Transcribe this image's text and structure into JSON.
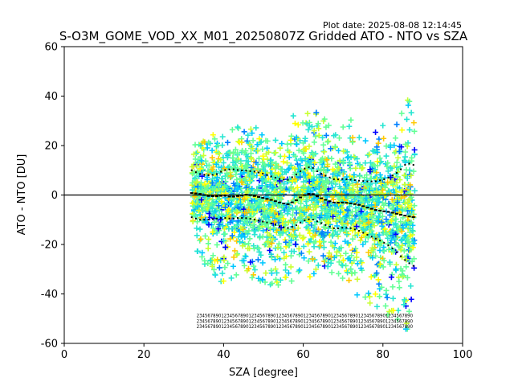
{
  "header": {
    "plot_date": "Plot date: 2025-08-08 12:14:45"
  },
  "chart_data": {
    "type": "scatter",
    "title": "S-O3M_GOME_VOD_XX_M01_20250807Z Gridded ATO - NTO vs SZA",
    "xlabel": "SZA [degree]",
    "ylabel": "ATO - NTO [DU]",
    "xlim": [
      0,
      100
    ],
    "ylim": [
      -60,
      60
    ],
    "xticks": [
      0,
      20,
      40,
      60,
      80,
      100
    ],
    "yticks": [
      -60,
      -40,
      -20,
      0,
      20,
      40,
      60
    ],
    "marker": "plus",
    "grid": false,
    "legend": "none",
    "zero_line": 0,
    "colors": {
      "point_palette": [
        "#0000ff",
        "#0080ff",
        "#00c8ff",
        "#28e6d2",
        "#64ff96",
        "#c8ff32",
        "#ffff00",
        "#ffc800"
      ],
      "mean_line": "#000000",
      "std_lines": "#000000"
    },
    "scatter_envelope": {
      "sza_range": [
        32,
        88
      ],
      "upper": [
        [
          32,
          22
        ],
        [
          36,
          24
        ],
        [
          40,
          25
        ],
        [
          44,
          30
        ],
        [
          48,
          28
        ],
        [
          52,
          24
        ],
        [
          56,
          27
        ],
        [
          60,
          44
        ],
        [
          62,
          36
        ],
        [
          66,
          30
        ],
        [
          70,
          31
        ],
        [
          74,
          30
        ],
        [
          78,
          28
        ],
        [
          82,
          30
        ],
        [
          86,
          42
        ],
        [
          88,
          30
        ]
      ],
      "lower": [
        [
          32,
          -22
        ],
        [
          36,
          -30
        ],
        [
          40,
          -36
        ],
        [
          44,
          -32
        ],
        [
          48,
          -34
        ],
        [
          52,
          -38
        ],
        [
          56,
          -36
        ],
        [
          60,
          -32
        ],
        [
          64,
          -36
        ],
        [
          68,
          -38
        ],
        [
          72,
          -40
        ],
        [
          76,
          -44
        ],
        [
          80,
          -48
        ],
        [
          84,
          -52
        ],
        [
          86,
          -56
        ],
        [
          88,
          -40
        ]
      ]
    },
    "mean": [
      [
        32,
        0.8
      ],
      [
        34,
        0.5
      ],
      [
        36,
        -0.4
      ],
      [
        38,
        -0.6
      ],
      [
        40,
        -0.2
      ],
      [
        42,
        -0.8
      ],
      [
        44,
        -0.3
      ],
      [
        46,
        0.2
      ],
      [
        48,
        -0.5
      ],
      [
        50,
        -1.2
      ],
      [
        52,
        -2.0
      ],
      [
        54,
        -3.0
      ],
      [
        56,
        -3.8
      ],
      [
        58,
        -2.4
      ],
      [
        60,
        -0.2
      ],
      [
        62,
        0.8
      ],
      [
        64,
        -1.0
      ],
      [
        66,
        -2.2
      ],
      [
        68,
        -3.2
      ],
      [
        70,
        -3.0
      ],
      [
        72,
        -3.4
      ],
      [
        74,
        -4.0
      ],
      [
        76,
        -5.0
      ],
      [
        78,
        -6.0
      ],
      [
        80,
        -6.5
      ],
      [
        82,
        -7.0
      ],
      [
        84,
        -7.8
      ],
      [
        86,
        -8.5
      ],
      [
        88,
        -9.0
      ]
    ],
    "mean_plus_std": [
      [
        32,
        10
      ],
      [
        34,
        8.5
      ],
      [
        36,
        8
      ],
      [
        38,
        8.2
      ],
      [
        40,
        10
      ],
      [
        42,
        10.5
      ],
      [
        44,
        10
      ],
      [
        46,
        9.8
      ],
      [
        48,
        9.4
      ],
      [
        50,
        8.6
      ],
      [
        52,
        7.5
      ],
      [
        54,
        6.5
      ],
      [
        56,
        6
      ],
      [
        58,
        8
      ],
      [
        60,
        10.5
      ],
      [
        62,
        11.5
      ],
      [
        64,
        9
      ],
      [
        66,
        7.5
      ],
      [
        68,
        6.2
      ],
      [
        70,
        6.5
      ],
      [
        72,
        6.2
      ],
      [
        74,
        5.8
      ],
      [
        76,
        5.5
      ],
      [
        78,
        5.5
      ],
      [
        80,
        6.2
      ],
      [
        82,
        7.5
      ],
      [
        84,
        9.5
      ],
      [
        86,
        13
      ],
      [
        88,
        12
      ]
    ],
    "mean_minus_std": [
      [
        32,
        -9
      ],
      [
        34,
        -10
      ],
      [
        36,
        -10
      ],
      [
        38,
        -9.6
      ],
      [
        40,
        -9.2
      ],
      [
        42,
        -9.6
      ],
      [
        44,
        -9.2
      ],
      [
        46,
        -9.4
      ],
      [
        48,
        -10
      ],
      [
        50,
        -10.8
      ],
      [
        52,
        -11.5
      ],
      [
        54,
        -12.6
      ],
      [
        56,
        -13.4
      ],
      [
        58,
        -12.5
      ],
      [
        60,
        -10.4
      ],
      [
        62,
        -9.6
      ],
      [
        64,
        -11
      ],
      [
        66,
        -12.4
      ],
      [
        68,
        -13.6
      ],
      [
        70,
        -13.2
      ],
      [
        72,
        -13.4
      ],
      [
        74,
        -14.5
      ],
      [
        76,
        -16
      ],
      [
        78,
        -17.5
      ],
      [
        80,
        -19
      ],
      [
        82,
        -21
      ],
      [
        84,
        -24
      ],
      [
        86,
        -27
      ],
      [
        88,
        -29
      ]
    ],
    "bin_count_labels": {
      "row_y_values": [
        -49.5,
        -51.7,
        -53.9
      ],
      "text": "2345678901234567890123456789012345678901234567890123456789012345678901234567890"
    }
  }
}
